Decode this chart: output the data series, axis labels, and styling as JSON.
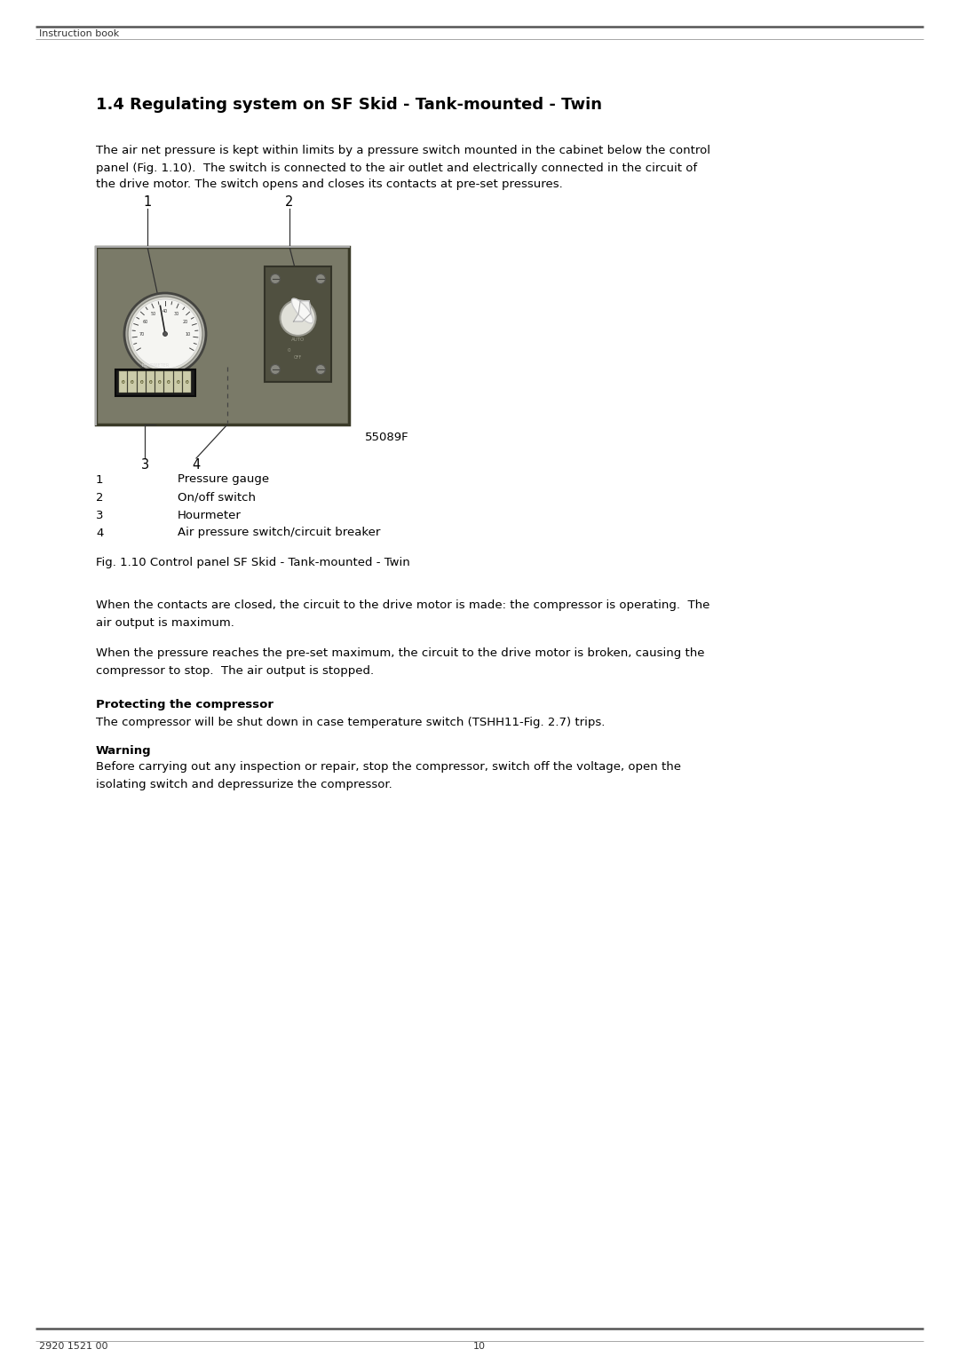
{
  "page_title": "Instruction book",
  "footer_left": "2920 1521 00",
  "footer_center": "10",
  "section_title": "1.4 Regulating system on SF Skid - Tank-mounted - Twin",
  "body_text_1_lines": [
    "The air net pressure is kept within limits by a pressure switch mounted in the cabinet below the control",
    "panel (Fig. 1.10).  The switch is connected to the air outlet and electrically connected in the circuit of",
    "the drive motor. The switch opens and closes its contacts at pre-set pressures."
  ],
  "figure_label": "55089F",
  "figure_caption": "Fig. 1.10 Control panel SF Skid - Tank-mounted - Twin",
  "legend_items": [
    {
      "num": "1",
      "text": "Pressure gauge"
    },
    {
      "num": "2",
      "text": "On/off switch"
    },
    {
      "num": "3",
      "text": "Hourmeter"
    },
    {
      "num": "4",
      "text": "Air pressure switch/circuit breaker"
    }
  ],
  "body_text_2_lines": [
    "When the contacts are closed, the circuit to the drive motor is made: the compressor is operating.  The",
    "air output is maximum."
  ],
  "body_text_3_lines": [
    "When the pressure reaches the pre-set maximum, the circuit to the drive motor is broken, causing the",
    "compressor to stop.  The air output is stopped."
  ],
  "protecting_title": "Protecting the compressor",
  "protecting_text": "The compressor will be shut down in case temperature switch (TSHH11-Fig. 2.7) trips.",
  "warning_title": "Warning",
  "warning_text_lines": [
    "Before carrying out any inspection or repair, stop the compressor, switch off the voltage, open the",
    "isolating switch and depressurize the compressor."
  ],
  "bg_color": "#ffffff",
  "text_color": "#000000",
  "header_line_color1": "#555555",
  "header_line_color2": "#999999",
  "panel_bg": "#7a7a68",
  "panel_border": "#3a3a28",
  "panel_dark_border": "#555545"
}
